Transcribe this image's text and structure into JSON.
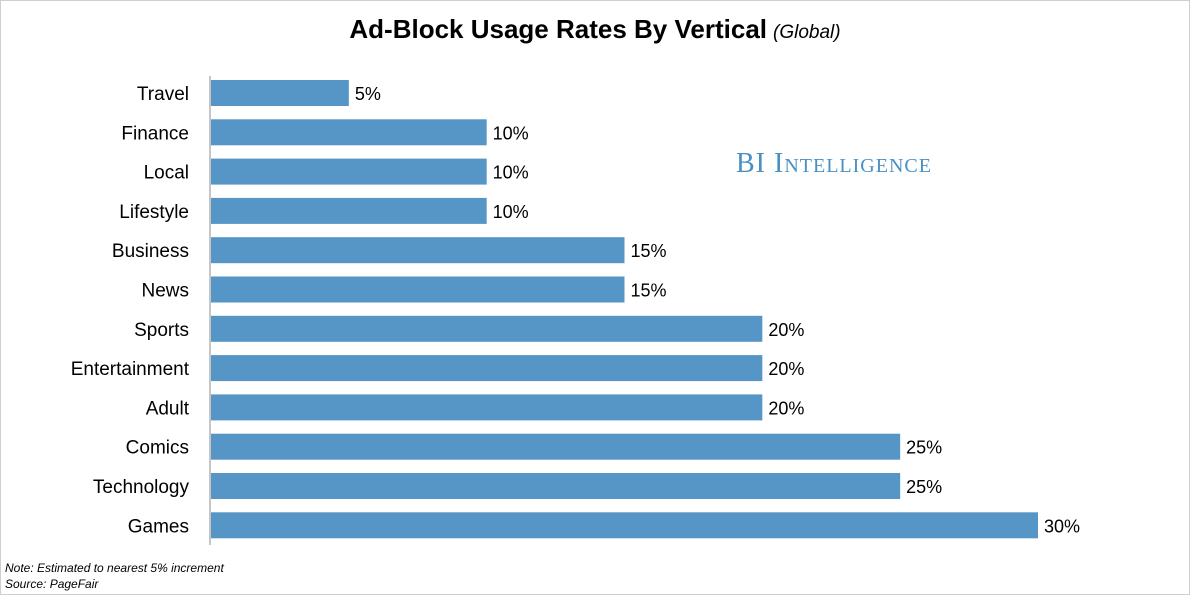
{
  "chart_data": {
    "type": "bar",
    "orientation": "horizontal",
    "title": "Ad-Block Usage Rates By Vertical",
    "subtitle": "(Global)",
    "categories": [
      "Travel",
      "Finance",
      "Local",
      "Lifestyle",
      "Business",
      "News",
      "Sports",
      "Entertainment",
      "Adult",
      "Comics",
      "Technology",
      "Games"
    ],
    "values": [
      5,
      10,
      10,
      10,
      15,
      15,
      20,
      20,
      20,
      25,
      25,
      30
    ],
    "value_labels": [
      "5%",
      "10%",
      "10%",
      "10%",
      "15%",
      "15%",
      "20%",
      "20%",
      "20%",
      "25%",
      "25%",
      "30%"
    ],
    "xlim": [
      0,
      30
    ],
    "grid": false,
    "bar_color": "#5596c7"
  },
  "watermark": "BI Intelligence",
  "notes": {
    "note": "Note: Estimated to nearest 5% increment",
    "source": "Source: PageFair"
  }
}
